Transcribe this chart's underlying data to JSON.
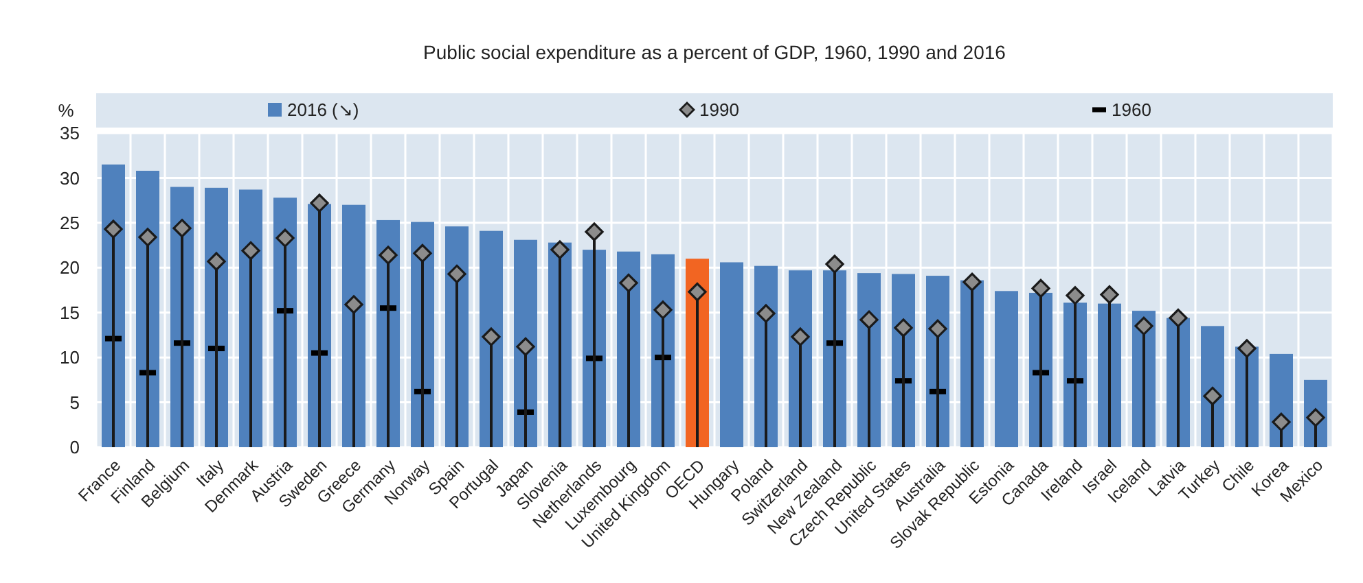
{
  "chart_data": {
    "type": "bar",
    "title": "Public social expenditure as a percent of GDP, 1960, 1990 and 2016",
    "ylabel": "%",
    "categories": [
      "France",
      "Finland",
      "Belgium",
      "Italy",
      "Denmark",
      "Austria",
      "Sweden",
      "Greece",
      "Germany",
      "Norway",
      "Spain",
      "Portugal",
      "Japan",
      "Slovenia",
      "Netherlands",
      "Luxembourg",
      "United Kingdom",
      "OECD",
      "Hungary",
      "Poland",
      "Switzerland",
      "New Zealand",
      "Czech Republic",
      "United States",
      "Australia",
      "Slovak Republic",
      "Estonia",
      "Canada",
      "Ireland",
      "Israel",
      "Iceland",
      "Latvia",
      "Turkey",
      "Chile",
      "Korea",
      "Mexico"
    ],
    "series": [
      {
        "name": "2016 (↘)",
        "color": "#4f81bd",
        "colors": [
          "#4f81bd",
          "#4f81bd",
          "#4f81bd",
          "#4f81bd",
          "#4f81bd",
          "#4f81bd",
          "#4f81bd",
          "#4f81bd",
          "#4f81bd",
          "#4f81bd",
          "#4f81bd",
          "#4f81bd",
          "#4f81bd",
          "#4f81bd",
          "#4f81bd",
          "#4f81bd",
          "#4f81bd",
          "#f26522",
          "#4f81bd",
          "#4f81bd",
          "#4f81bd",
          "#4f81bd",
          "#4f81bd",
          "#4f81bd",
          "#4f81bd",
          "#4f81bd",
          "#4f81bd",
          "#4f81bd",
          "#4f81bd",
          "#4f81bd",
          "#4f81bd",
          "#4f81bd",
          "#4f81bd",
          "#4f81bd",
          "#4f81bd",
          "#4f81bd"
        ],
        "values": [
          31.5,
          30.8,
          29.0,
          28.9,
          28.7,
          27.8,
          27.1,
          27.0,
          25.3,
          25.1,
          24.6,
          24.1,
          23.1,
          22.8,
          22.0,
          21.8,
          21.5,
          21.0,
          20.6,
          20.2,
          19.7,
          19.7,
          19.4,
          19.3,
          19.1,
          18.6,
          17.4,
          17.2,
          16.1,
          16.0,
          15.2,
          14.4,
          13.5,
          11.2,
          10.4,
          7.5
        ]
      },
      {
        "name": "1990",
        "type": "lollipop",
        "marker": "diamond",
        "color": "#8c8c8c",
        "values": [
          24.3,
          23.4,
          24.4,
          20.7,
          21.9,
          23.3,
          27.2,
          15.9,
          21.4,
          21.6,
          19.3,
          12.3,
          11.2,
          22.0,
          24.0,
          18.3,
          15.3,
          17.3,
          null,
          14.9,
          12.3,
          20.4,
          14.2,
          13.3,
          13.2,
          18.4,
          null,
          17.7,
          16.9,
          17.0,
          13.5,
          14.4,
          5.7,
          11.0,
          2.8,
          3.3
        ]
      },
      {
        "name": "1960",
        "type": "scatter",
        "color": "#000000",
        "values": [
          12.1,
          8.3,
          11.6,
          11.0,
          null,
          15.2,
          10.5,
          null,
          15.5,
          6.2,
          null,
          null,
          3.9,
          null,
          9.9,
          null,
          10.0,
          null,
          null,
          null,
          null,
          11.6,
          null,
          7.4,
          6.2,
          null,
          null,
          8.3,
          7.4,
          null,
          null,
          null,
          null,
          null,
          null,
          null
        ]
      }
    ],
    "ylim": [
      0,
      35
    ],
    "yticks": [
      0,
      5,
      10,
      15,
      20,
      25,
      30,
      35
    ],
    "grid": true,
    "legend": "top"
  }
}
